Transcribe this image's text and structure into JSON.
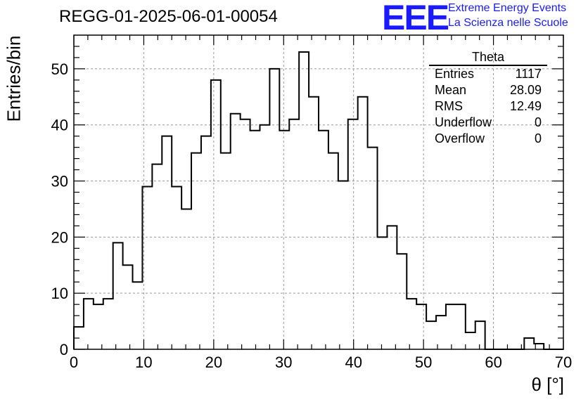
{
  "title": "REGG-01-2025-06-01-00054",
  "logo": {
    "mark": "EEE",
    "line1": "Extreme Energy Events",
    "line2": "La Scienza nelle Scuole",
    "color": "#1a1aff"
  },
  "stats_box": {
    "title": "Theta",
    "rows": [
      {
        "label": "Entries",
        "value": "1117"
      },
      {
        "label": "Mean",
        "value": "28.09"
      },
      {
        "label": "RMS",
        "value": "12.49"
      },
      {
        "label": "Underflow",
        "value": "0"
      },
      {
        "label": "Overflow",
        "value": "0"
      }
    ]
  },
  "chart_data": {
    "type": "bar",
    "style": "step-histogram",
    "title": "REGG-01-2025-06-01-00054",
    "xlabel": "θ [°]",
    "ylabel": "Entries/bin",
    "xlim": [
      0,
      70
    ],
    "ylim": [
      0,
      56
    ],
    "bin_width": 1.4,
    "bin_edges_start": 0,
    "values": [
      4,
      9,
      8,
      9,
      19,
      15,
      12,
      29,
      33,
      38,
      29,
      25,
      35,
      38,
      48,
      35,
      42,
      41,
      39,
      40,
      50,
      39,
      41,
      53,
      45,
      39,
      35,
      30,
      41,
      45,
      36,
      20,
      22,
      17,
      9,
      8,
      5,
      6,
      8,
      8,
      3,
      5,
      0,
      0,
      0,
      0,
      2,
      1,
      0,
      0
    ],
    "xticks": [
      0,
      10,
      20,
      30,
      40,
      50,
      60,
      70
    ],
    "yticks": [
      0,
      10,
      20,
      30,
      40,
      50
    ],
    "grid": true
  }
}
